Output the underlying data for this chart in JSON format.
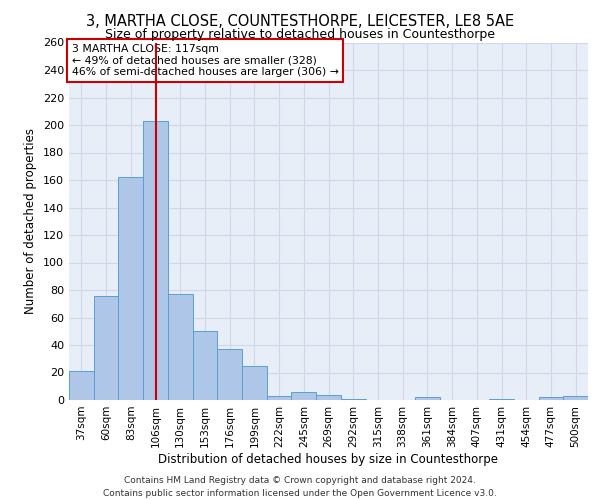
{
  "title": "3, MARTHA CLOSE, COUNTESTHORPE, LEICESTER, LE8 5AE",
  "subtitle": "Size of property relative to detached houses in Countesthorpe",
  "xlabel": "Distribution of detached houses by size in Countesthorpe",
  "ylabel": "Number of detached properties",
  "categories": [
    "37sqm",
    "60sqm",
    "83sqm",
    "106sqm",
    "130sqm",
    "153sqm",
    "176sqm",
    "199sqm",
    "222sqm",
    "245sqm",
    "269sqm",
    "292sqm",
    "315sqm",
    "338sqm",
    "361sqm",
    "384sqm",
    "407sqm",
    "431sqm",
    "454sqm",
    "477sqm",
    "500sqm"
  ],
  "values": [
    21,
    76,
    162,
    203,
    77,
    50,
    37,
    25,
    3,
    6,
    4,
    1,
    0,
    0,
    2,
    0,
    0,
    1,
    0,
    2,
    3
  ],
  "bar_color": "#aec6e8",
  "bar_edge_color": "#5a9fd4",
  "marker_bar_index": 3,
  "marker_color": "#cc0000",
  "annotation_text": "3 MARTHA CLOSE: 117sqm\n← 49% of detached houses are smaller (328)\n46% of semi-detached houses are larger (306) →",
  "annotation_box_color": "#ffffff",
  "annotation_box_edge": "#cc0000",
  "grid_color": "#d0d8e8",
  "background_color": "#e8eef8",
  "footer_line1": "Contains HM Land Registry data © Crown copyright and database right 2024.",
  "footer_line2": "Contains public sector information licensed under the Open Government Licence v3.0.",
  "ylim": [
    0,
    260
  ],
  "yticks": [
    0,
    20,
    40,
    60,
    80,
    100,
    120,
    140,
    160,
    180,
    200,
    220,
    240,
    260
  ]
}
